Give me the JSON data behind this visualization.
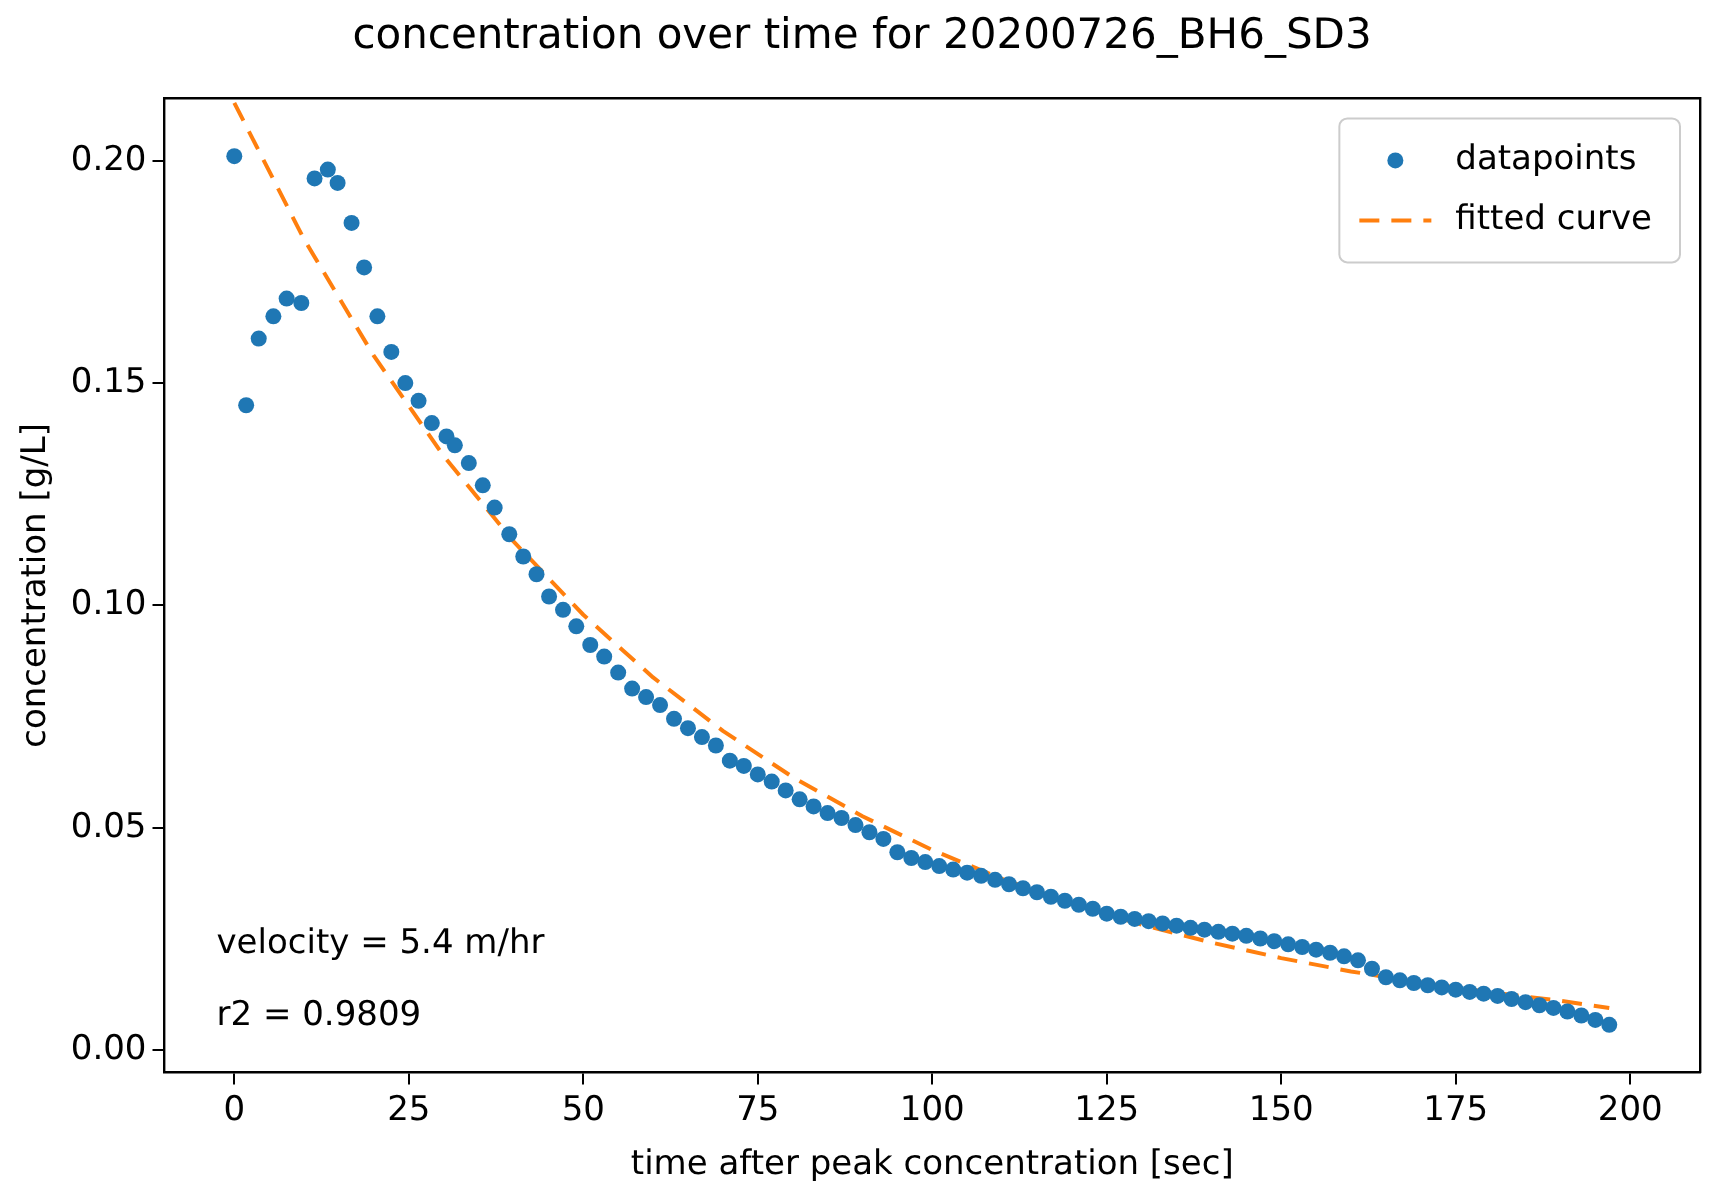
{
  "chart_data": {
    "type": "scatter",
    "title": "concentration over time for 20200726_BH6_SD3",
    "xlabel": "time after peak concentration [sec]",
    "ylabel": "concentration [g/L]",
    "xlim": [
      -10,
      210
    ],
    "xticks": [
      0,
      25,
      50,
      75,
      100,
      125,
      150,
      175,
      200
    ],
    "ylim": [
      -0.005,
      0.214
    ],
    "yticks": [
      {
        "value": 0,
        "label": "0.00"
      },
      {
        "value": 0.05,
        "label": "0.05"
      },
      {
        "value": 0.1,
        "label": "0.10"
      },
      {
        "value": 0.15,
        "label": "0.15"
      },
      {
        "value": 0.2,
        "label": "0.20"
      }
    ],
    "grid": false,
    "legend": "top right",
    "annotations": [
      "velocity = 5.4 m/hr",
      "r2 = 0.9809"
    ],
    "series": [
      {
        "name": "datapoints",
        "color": "#1f77b4",
        "marker": "circle",
        "x": [
          0,
          1.7,
          3.5,
          5.6,
          7.5,
          9.6,
          11.5,
          13.4,
          14.8,
          16.8,
          18.6,
          20.5,
          22.5,
          24.5,
          26.4,
          28.3,
          30.4,
          31.6,
          33.6,
          35.6,
          37.3,
          39.4,
          41.4,
          43.3,
          45.1,
          47.1,
          49,
          51,
          53,
          55,
          57,
          59,
          61,
          63,
          65,
          67,
          69,
          71,
          73,
          75,
          77,
          79,
          81,
          83,
          85,
          87,
          89,
          91,
          93,
          95,
          97,
          99,
          101,
          103,
          105,
          107,
          109,
          111,
          113,
          115,
          117,
          119,
          121,
          123,
          125,
          127,
          129,
          131,
          133,
          135,
          137,
          139,
          141,
          143,
          145,
          147,
          149,
          151,
          153,
          155,
          157,
          159,
          161,
          163,
          165,
          167,
          169,
          171,
          173,
          175,
          177,
          179,
          181,
          183,
          185,
          187,
          189,
          191,
          193,
          195,
          197
        ],
        "values": [
          0.201,
          0.145,
          0.16,
          0.165,
          0.169,
          0.168,
          0.196,
          0.198,
          0.195,
          0.186,
          0.176,
          0.165,
          0.157,
          0.15,
          0.146,
          0.141,
          0.138,
          0.136,
          0.132,
          0.127,
          0.122,
          0.116,
          0.111,
          0.107,
          0.102,
          0.099,
          0.0953,
          0.0911,
          0.0885,
          0.0849,
          0.0813,
          0.0794,
          0.0776,
          0.0745,
          0.0724,
          0.0704,
          0.0685,
          0.0651,
          0.0639,
          0.062,
          0.0604,
          0.0584,
          0.0564,
          0.0548,
          0.0533,
          0.0522,
          0.0506,
          0.049,
          0.0475,
          0.0445,
          0.0432,
          0.0423,
          0.0414,
          0.0406,
          0.0399,
          0.0392,
          0.0383,
          0.0373,
          0.0364,
          0.0355,
          0.0345,
          0.0336,
          0.0327,
          0.0318,
          0.0307,
          0.03,
          0.0295,
          0.029,
          0.0285,
          0.028,
          0.0275,
          0.0271,
          0.0266,
          0.0262,
          0.0257,
          0.0251,
          0.0245,
          0.0238,
          0.0232,
          0.0226,
          0.0219,
          0.0211,
          0.0202,
          0.0183,
          0.0164,
          0.0157,
          0.0151,
          0.0146,
          0.0141,
          0.0136,
          0.0131,
          0.0127,
          0.0122,
          0.0115,
          0.0108,
          0.0101,
          0.0095,
          0.0087,
          0.0078,
          0.0068,
          0.0057
        ]
      },
      {
        "name": "fitted curve",
        "type": "line",
        "color": "#ff7f0e",
        "marker": "none",
        "line_style": "dashed",
        "x": [
          0,
          10,
          20,
          30,
          40,
          50,
          60,
          70,
          80,
          90,
          100,
          110,
          120,
          130,
          140,
          150,
          160,
          170,
          180,
          190,
          197
        ],
        "values": [
          0.213,
          0.1823,
          0.1561,
          0.1336,
          0.1144,
          0.0979,
          0.0838,
          0.0718,
          0.0614,
          0.0526,
          0.045,
          0.0385,
          0.033,
          0.0282,
          0.0242,
          0.0207,
          0.0177,
          0.0152,
          0.013,
          0.0111,
          0.0095
        ]
      }
    ]
  }
}
